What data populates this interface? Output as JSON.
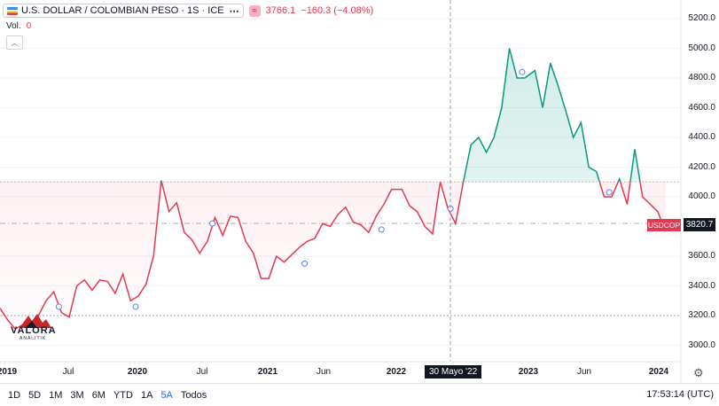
{
  "legend": {
    "symbol": "U.S. DOLLAR / COLOMBIAN PESO · 1S · ICE",
    "last_value": "3766.1",
    "change": "−160.3 (−4.08%)",
    "volume_label": "Vol.",
    "volume_value": "0"
  },
  "price_axis": [
    "5200.0",
    "5000.0",
    "4800.0",
    "4600.0",
    "4400.0",
    "4200.0",
    "4000.0",
    "3600.0",
    "3400.0",
    "3200.0",
    "3000.0"
  ],
  "time_axis": [
    "2019",
    "Jul",
    "2020",
    "Jul",
    "2021",
    "Jun",
    "2022",
    "2023",
    "Jun",
    "2024"
  ],
  "crosshair": {
    "time": "30 Mayo '22",
    "price": "3820.7"
  },
  "ticker_tag": "USDCOP",
  "logo": {
    "word": "VALORA",
    "sub": "ANALITIK"
  },
  "colors": {
    "down": "#e53950",
    "up": "#089981",
    "accent": "#2962ff"
  },
  "bottom_bar": {
    "ranges": [
      "1D",
      "5D",
      "1M",
      "3M",
      "6M",
      "YTD",
      "1A",
      "5A",
      "Todos"
    ],
    "active_range": "5A",
    "clock": "17:53:14 (UTC)"
  },
  "chart_data": {
    "type": "line",
    "series": [
      {
        "values": [
          [
            "2018-12-31",
            3250
          ],
          [
            "2019-01-21",
            3170
          ],
          [
            "2019-02-11",
            3110
          ],
          [
            "2019-03-04",
            3140
          ],
          [
            "2019-03-25",
            3150
          ],
          [
            "2019-04-15",
            3200
          ],
          [
            "2019-05-06",
            3300
          ],
          [
            "2019-05-27",
            3360
          ],
          [
            "2019-06-17",
            3220
          ],
          [
            "2019-07-08",
            3190
          ],
          [
            "2019-07-29",
            3400
          ],
          [
            "2019-08-19",
            3440
          ],
          [
            "2019-09-09",
            3370
          ],
          [
            "2019-09-30",
            3440
          ],
          [
            "2019-10-21",
            3430
          ],
          [
            "2019-11-11",
            3350
          ],
          [
            "2019-12-02",
            3480
          ],
          [
            "2019-12-23",
            3300
          ],
          [
            "2020-01-13",
            3330
          ],
          [
            "2020-02-03",
            3410
          ],
          [
            "2020-02-24",
            3600
          ],
          [
            "2020-03-16",
            4110
          ],
          [
            "2020-04-06",
            3900
          ],
          [
            "2020-04-27",
            3960
          ],
          [
            "2020-05-18",
            3760
          ],
          [
            "2020-06-08",
            3710
          ],
          [
            "2020-06-29",
            3620
          ],
          [
            "2020-07-20",
            3700
          ],
          [
            "2020-08-10",
            3860
          ],
          [
            "2020-08-31",
            3740
          ],
          [
            "2020-09-21",
            3870
          ],
          [
            "2020-10-12",
            3860
          ],
          [
            "2020-11-02",
            3700
          ],
          [
            "2020-11-23",
            3620
          ],
          [
            "2020-12-14",
            3450
          ],
          [
            "2021-01-04",
            3450
          ],
          [
            "2021-01-25",
            3600
          ],
          [
            "2021-02-15",
            3560
          ],
          [
            "2021-03-08",
            3610
          ],
          [
            "2021-03-29",
            3660
          ],
          [
            "2021-04-19",
            3700
          ],
          [
            "2021-05-10",
            3720
          ],
          [
            "2021-05-31",
            3820
          ],
          [
            "2021-06-21",
            3800
          ],
          [
            "2021-07-12",
            3880
          ],
          [
            "2021-08-02",
            3930
          ],
          [
            "2021-08-23",
            3830
          ],
          [
            "2021-09-13",
            3810
          ],
          [
            "2021-10-04",
            3760
          ],
          [
            "2021-10-25",
            3870
          ],
          [
            "2021-11-15",
            3950
          ],
          [
            "2021-12-06",
            4050
          ],
          [
            "2022-01-03",
            4050
          ],
          [
            "2022-01-24",
            3940
          ],
          [
            "2022-02-14",
            3900
          ],
          [
            "2022-03-07",
            3800
          ],
          [
            "2022-03-28",
            3750
          ],
          [
            "2022-04-18",
            4100
          ],
          [
            "2022-05-09",
            3920
          ],
          [
            "2022-05-30",
            3820
          ],
          [
            "2022-06-20",
            4100
          ],
          [
            "2022-07-11",
            4350
          ],
          [
            "2022-08-01",
            4400
          ],
          [
            "2022-08-22",
            4300
          ],
          [
            "2022-09-12",
            4400
          ],
          [
            "2022-10-03",
            4600
          ],
          [
            "2022-10-24",
            5000
          ],
          [
            "2022-11-14",
            4800
          ],
          [
            "2022-12-05",
            4800
          ],
          [
            "2023-01-02",
            4850
          ],
          [
            "2023-01-23",
            4600
          ],
          [
            "2023-02-13",
            4900
          ],
          [
            "2023-03-06",
            4750
          ],
          [
            "2023-03-27",
            4580
          ],
          [
            "2023-04-17",
            4400
          ],
          [
            "2023-05-08",
            4500
          ],
          [
            "2023-05-29",
            4200
          ],
          [
            "2023-06-19",
            4170
          ],
          [
            "2023-07-10",
            4000
          ],
          [
            "2023-07-31",
            4000
          ],
          [
            "2023-08-21",
            4120
          ],
          [
            "2023-09-11",
            3950
          ],
          [
            "2023-10-02",
            4320
          ],
          [
            "2023-10-23",
            4000
          ],
          [
            "2023-11-13",
            3950
          ],
          [
            "2023-12-04",
            3900
          ],
          [
            "2023-12-25",
            3766
          ]
        ]
      }
    ],
    "baseline": 4100,
    "reference_lines": [
      3200,
      3820.7
    ],
    "ylim": [
      2900,
      5300
    ],
    "xlim": [
      "2018-12-31",
      "2024-02-05"
    ],
    "grid": true,
    "xlabel": "",
    "ylabel": ""
  }
}
